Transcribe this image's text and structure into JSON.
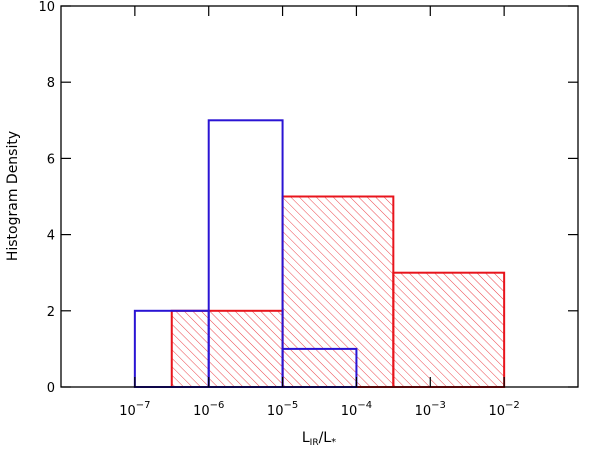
{
  "chart_data": {
    "type": "histogram",
    "title": "",
    "xlabel": "L_IR/L_*",
    "ylabel": "Histogram Density",
    "x_scale": "log",
    "xlim": [
      1e-08,
      0.1
    ],
    "ylim": [
      0,
      10
    ],
    "x_tick_exponents": [
      -7,
      -6,
      -5,
      -4,
      -3,
      -2
    ],
    "y_ticks": [
      0,
      2,
      4,
      6,
      8,
      10
    ],
    "grid": false,
    "legend": "none",
    "series": [
      {
        "color": "#e8141c",
        "style": "hatched",
        "bins": [
          {
            "x_start": 3.16e-07,
            "x_end": 1e-05,
            "value": 2
          },
          {
            "x_start": 1e-05,
            "x_end": 0.000316,
            "value": 5
          },
          {
            "x_start": 0.000316,
            "x_end": 0.01,
            "value": 3
          }
        ]
      },
      {
        "color": "#2a14d4",
        "style": "outline",
        "bins": [
          {
            "x_start": 1e-07,
            "x_end": 1e-06,
            "value": 2
          },
          {
            "x_start": 1e-06,
            "x_end": 1e-05,
            "value": 7
          },
          {
            "x_start": 1e-05,
            "x_end": 0.0001,
            "value": 1
          }
        ]
      }
    ]
  },
  "labels": {
    "x_main": "L",
    "x_sub1": "IR",
    "x_slash": "/L",
    "x_sub2": "*",
    "y_label": "Histogram Density",
    "tick_base": "10"
  }
}
